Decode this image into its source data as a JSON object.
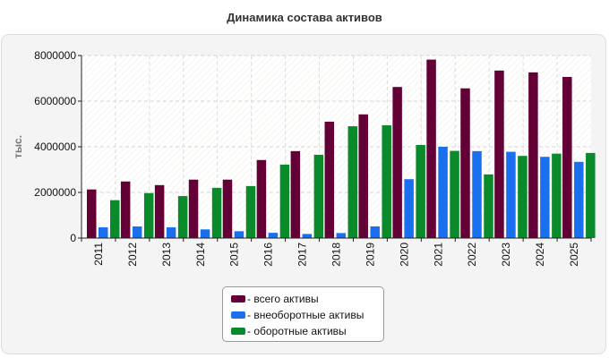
{
  "title": "Динамика состава активов",
  "colors": {
    "total": "#630036",
    "noncurrent": "#1a6fef",
    "current": "#0a8a2a"
  },
  "legend": {
    "items": [
      {
        "label": "- всего активы",
        "color": "#630036"
      },
      {
        "label": "- внеоборотные активы",
        "color": "#1a6fef"
      },
      {
        "label": "- оборотные активы",
        "color": "#0a8a2a"
      }
    ]
  },
  "chart_data": {
    "type": "bar",
    "title": "Динамика состава активов",
    "ylabel": "тыс.",
    "xlabel": "",
    "ylim": [
      0,
      8000000
    ],
    "yticks": [
      "0",
      "2000000",
      "4000000",
      "6000000",
      "8000000"
    ],
    "grid": true,
    "legend_position": "bottom",
    "categories": [
      "2011",
      "2012",
      "2013",
      "2014",
      "2015",
      "2016",
      "2017",
      "2018",
      "2019",
      "2020",
      "2021",
      "2022",
      "2023",
      "2024",
      "2025"
    ],
    "series": [
      {
        "name": "всего активы",
        "values": [
          2130000,
          2480000,
          2320000,
          2560000,
          2560000,
          3420000,
          3810000,
          5100000,
          5420000,
          6620000,
          7820000,
          6560000,
          7340000,
          7260000,
          7060000
        ]
      },
      {
        "name": "внеоборотные активы",
        "values": [
          470000,
          510000,
          470000,
          380000,
          300000,
          230000,
          180000,
          220000,
          510000,
          2580000,
          4000000,
          3810000,
          3780000,
          3560000,
          3340000
        ]
      },
      {
        "name": "оборотные активы",
        "values": [
          1660000,
          1970000,
          1840000,
          2200000,
          2280000,
          3220000,
          3650000,
          4900000,
          4940000,
          4080000,
          3820000,
          2790000,
          3600000,
          3700000,
          3730000
        ]
      }
    ]
  }
}
